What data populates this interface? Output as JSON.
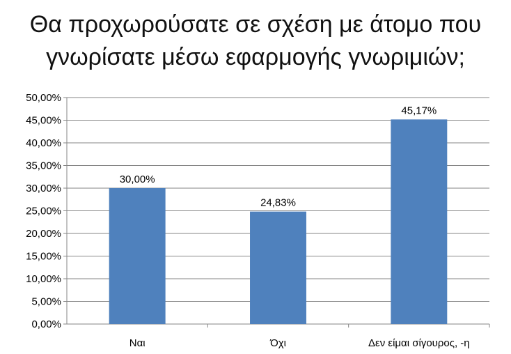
{
  "chart_data": {
    "type": "bar",
    "title_lines": [
      "Θα προχωρούσατε σε σχέση με άτομο που",
      "γνωρίσατε μέσω εφαρμογής γνωριμιών;"
    ],
    "categories": [
      "Ναι",
      "Όχι",
      "Δεν είμαι σίγουρος, -η"
    ],
    "values": [
      30.0,
      24.83,
      45.17
    ],
    "data_labels": [
      "30,00%",
      "24,83%",
      "45,17%"
    ],
    "ylim": [
      0,
      50
    ],
    "yticks": [
      0,
      5,
      10,
      15,
      20,
      25,
      30,
      35,
      40,
      45,
      50
    ],
    "ytick_labels": [
      "0,00%",
      "5,00%",
      "10,00%",
      "15,00%",
      "20,00%",
      "25,00%",
      "30,00%",
      "35,00%",
      "40,00%",
      "45,00%",
      "50,00%"
    ],
    "grid": true,
    "legend": false,
    "bar_color": "#4F81BD",
    "xlabel": "",
    "ylabel": ""
  }
}
